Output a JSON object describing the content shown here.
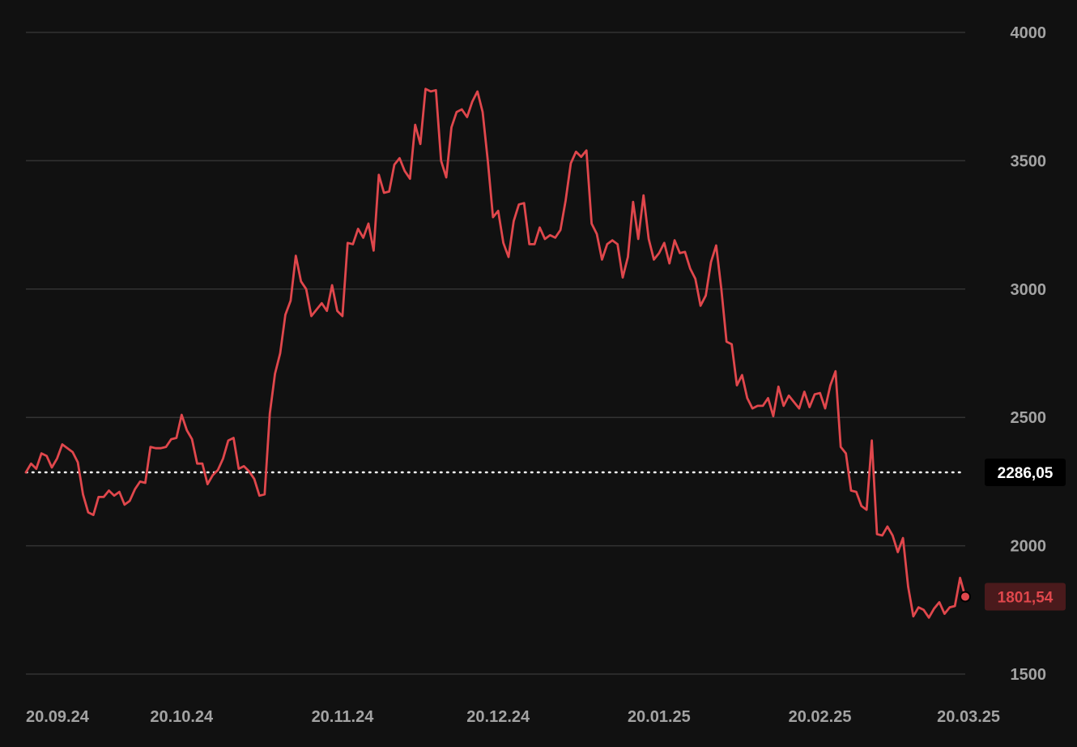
{
  "chart_data": {
    "type": "line",
    "colors": {
      "background": "#111111",
      "line": "#e0474c",
      "grid": "#333333",
      "tick": "#a3a3a3",
      "reference": "#ffffff",
      "last_badge_bg": "#4a1a1c"
    },
    "ylim": [
      1500,
      4000
    ],
    "y_ticks": [
      "4000",
      "3500",
      "3000",
      "2500",
      "2000",
      "1500"
    ],
    "x_ticks": [
      "20.09.24",
      "20.10.24",
      "20.11.24",
      "20.12.24",
      "20.01.25",
      "20.02.25",
      "20.03.25"
    ],
    "x_range": [
      "2024-09-20",
      "2025-03-20"
    ],
    "reference": {
      "value": 2286.05,
      "label": "2286,05"
    },
    "last": {
      "value": 1801.54,
      "label": "1801,54"
    },
    "series": [
      {
        "x": [
          "2024-09-20",
          "2024-09-21",
          "2024-09-22",
          "2024-09-23",
          "2024-09-24",
          "2024-09-25",
          "2024-09-26",
          "2024-09-27",
          "2024-09-28",
          "2024-09-29",
          "2024-09-30",
          "2024-10-01",
          "2024-10-02",
          "2024-10-03",
          "2024-10-04",
          "2024-10-05",
          "2024-10-06",
          "2024-10-07",
          "2024-10-08",
          "2024-10-09",
          "2024-10-10",
          "2024-10-11",
          "2024-10-12",
          "2024-10-13",
          "2024-10-14",
          "2024-10-15",
          "2024-10-16",
          "2024-10-17",
          "2024-10-18",
          "2024-10-19",
          "2024-10-20",
          "2024-10-21",
          "2024-10-22",
          "2024-10-23",
          "2024-10-24",
          "2024-10-25",
          "2024-10-26",
          "2024-10-27",
          "2024-10-28",
          "2024-10-29",
          "2024-10-30",
          "2024-10-31",
          "2024-11-01",
          "2024-11-02",
          "2024-11-03",
          "2024-11-04",
          "2024-11-05",
          "2024-11-06",
          "2024-11-07",
          "2024-11-08",
          "2024-11-09",
          "2024-11-10",
          "2024-11-11",
          "2024-11-12",
          "2024-11-13",
          "2024-11-14",
          "2024-11-15",
          "2024-11-16",
          "2024-11-17",
          "2024-11-18",
          "2024-11-19",
          "2024-11-20",
          "2024-11-21",
          "2024-11-22",
          "2024-11-23",
          "2024-11-24",
          "2024-11-25",
          "2024-11-26",
          "2024-11-27",
          "2024-11-28",
          "2024-11-29",
          "2024-11-30",
          "2024-12-01",
          "2024-12-02",
          "2024-12-03",
          "2024-12-04",
          "2024-12-05",
          "2024-12-06",
          "2024-12-07",
          "2024-12-08",
          "2024-12-09",
          "2024-12-10",
          "2024-12-11",
          "2024-12-12",
          "2024-12-13",
          "2024-12-14",
          "2024-12-15",
          "2024-12-16",
          "2024-12-17",
          "2024-12-18",
          "2024-12-19",
          "2024-12-20",
          "2024-12-21",
          "2024-12-22",
          "2024-12-23",
          "2024-12-24",
          "2024-12-25",
          "2024-12-26",
          "2024-12-27",
          "2024-12-28",
          "2024-12-29",
          "2024-12-30",
          "2024-12-31",
          "2025-01-01",
          "2025-01-02",
          "2025-01-03",
          "2025-01-04",
          "2025-01-05",
          "2025-01-06",
          "2025-01-07",
          "2025-01-08",
          "2025-01-09",
          "2025-01-10",
          "2025-01-11",
          "2025-01-12",
          "2025-01-13",
          "2025-01-14",
          "2025-01-15",
          "2025-01-16",
          "2025-01-17",
          "2025-01-18",
          "2025-01-19",
          "2025-01-20",
          "2025-01-21",
          "2025-01-22",
          "2025-01-23",
          "2025-01-24",
          "2025-01-25",
          "2025-01-26",
          "2025-01-27",
          "2025-01-28",
          "2025-01-29",
          "2025-01-30",
          "2025-01-31",
          "2025-02-01",
          "2025-02-02",
          "2025-02-03",
          "2025-02-04",
          "2025-02-05",
          "2025-02-06",
          "2025-02-07",
          "2025-02-08",
          "2025-02-09",
          "2025-02-10",
          "2025-02-11",
          "2025-02-12",
          "2025-02-13",
          "2025-02-14",
          "2025-02-15",
          "2025-02-16",
          "2025-02-17",
          "2025-02-18",
          "2025-02-19",
          "2025-02-20",
          "2025-02-21",
          "2025-02-22",
          "2025-02-23",
          "2025-02-24",
          "2025-02-25",
          "2025-02-26",
          "2025-02-27",
          "2025-02-28",
          "2025-03-01",
          "2025-03-02",
          "2025-03-03",
          "2025-03-04",
          "2025-03-05",
          "2025-03-06",
          "2025-03-07",
          "2025-03-08",
          "2025-03-09",
          "2025-03-10",
          "2025-03-11",
          "2025-03-12",
          "2025-03-13",
          "2025-03-14",
          "2025-03-15",
          "2025-03-16",
          "2025-03-17",
          "2025-03-18",
          "2025-03-19",
          "2025-03-20"
        ],
        "y": [
          2286,
          2320,
          2300,
          2360,
          2350,
          2305,
          2340,
          2395,
          2380,
          2365,
          2325,
          2200,
          2130,
          2120,
          2190,
          2190,
          2215,
          2195,
          2210,
          2160,
          2175,
          2220,
          2250,
          2245,
          2385,
          2380,
          2380,
          2385,
          2415,
          2420,
          2510,
          2450,
          2415,
          2320,
          2320,
          2240,
          2275,
          2295,
          2340,
          2410,
          2420,
          2300,
          2310,
          2290,
          2260,
          2195,
          2200,
          2515,
          2670,
          2750,
          2900,
          2955,
          3130,
          3030,
          3000,
          2895,
          2920,
          2945,
          2915,
          3015,
          2915,
          2895,
          3180,
          3175,
          3235,
          3200,
          3255,
          3150,
          3445,
          3375,
          3380,
          3485,
          3510,
          3460,
          3430,
          3640,
          3565,
          3780,
          3770,
          3775,
          3500,
          3435,
          3630,
          3690,
          3700,
          3670,
          3730,
          3770,
          3690,
          3500,
          3280,
          3305,
          3180,
          3125,
          3265,
          3330,
          3335,
          3175,
          3175,
          3240,
          3195,
          3210,
          3200,
          3230,
          3345,
          3490,
          3535,
          3515,
          3540,
          3255,
          3215,
          3115,
          3175,
          3190,
          3175,
          3045,
          3125,
          3340,
          3195,
          3365,
          3195,
          3115,
          3140,
          3180,
          3100,
          3190,
          3140,
          3145,
          3080,
          3040,
          2935,
          2975,
          3105,
          3170,
          3000,
          2795,
          2785,
          2625,
          2665,
          2575,
          2535,
          2545,
          2545,
          2575,
          2505,
          2620,
          2545,
          2585,
          2560,
          2535,
          2600,
          2540,
          2590,
          2595,
          2535,
          2625,
          2680,
          2385,
          2360,
          2215,
          2210,
          2155,
          2140,
          2410,
          2045,
          2040,
          2075,
          2040,
          1975,
          2030,
          1840,
          1725,
          1760,
          1750,
          1720,
          1755,
          1780,
          1735,
          1760,
          1765,
          1875,
          1801.54
        ]
      }
    ]
  }
}
